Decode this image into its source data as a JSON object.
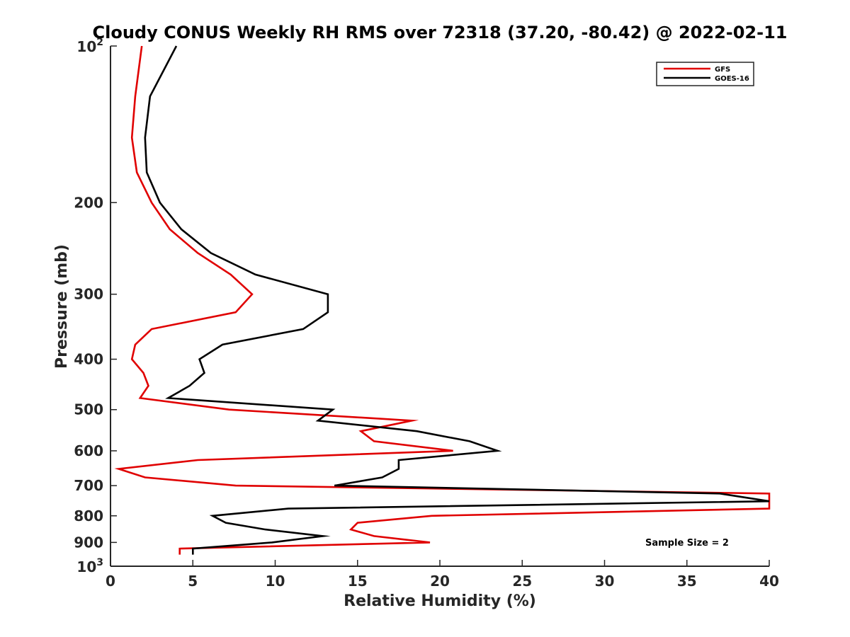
{
  "chart_data": {
    "type": "line",
    "title": "Cloudy CONUS Weekly RH RMS over 72318 (37.20, -80.42) @ 2022-02-11",
    "xlabel": "Relative Humidity (%)",
    "ylabel": "Pressure (mb)",
    "xlim": [
      0,
      40
    ],
    "ylim": [
      100,
      1000
    ],
    "yscale": "log",
    "y_reversed": true,
    "grid": false,
    "legend_position": "top-right",
    "x_ticks": [
      "0",
      "5",
      "10",
      "15",
      "20",
      "25",
      "30",
      "35",
      "40"
    ],
    "y_ticks": [
      {
        "value": 100,
        "base": "10",
        "exp": "2"
      },
      {
        "value": 200,
        "label": "200"
      },
      {
        "value": 300,
        "label": "300"
      },
      {
        "value": 400,
        "label": "400"
      },
      {
        "value": 500,
        "label": "500"
      },
      {
        "value": 600,
        "label": "600"
      },
      {
        "value": 700,
        "label": "700"
      },
      {
        "value": 800,
        "label": "800"
      },
      {
        "value": 900,
        "label": "900"
      },
      {
        "value": 1000,
        "base": "10",
        "exp": "3"
      }
    ],
    "annotation": "Sample Size = 2",
    "series": [
      {
        "name": "GFS",
        "color": "#e00000",
        "pressure": [
          100,
          125,
          150,
          175,
          200,
          225,
          250,
          275,
          300,
          325,
          350,
          375,
          400,
          425,
          450,
          475,
          500,
          525,
          550,
          575,
          600,
          625,
          650,
          675,
          700,
          725,
          750,
          775,
          800,
          825,
          850,
          875,
          900,
          925,
          950
        ],
        "values": [
          1.9,
          1.5,
          1.3,
          1.6,
          2.5,
          3.6,
          5.3,
          7.3,
          8.6,
          7.6,
          2.5,
          1.5,
          1.3,
          2.0,
          2.3,
          1.8,
          7.2,
          18.3,
          15.2,
          16.0,
          20.8,
          5.3,
          0.5,
          2.1,
          7.6,
          40.0,
          40.0,
          40.0,
          19.5,
          15.0,
          14.6,
          16.0,
          19.4,
          4.2,
          4.2
        ]
      },
      {
        "name": "GOES-16",
        "color": "#000000",
        "pressure": [
          100,
          125,
          150,
          175,
          200,
          225,
          250,
          275,
          300,
          325,
          350,
          375,
          400,
          425,
          450,
          475,
          500,
          525,
          550,
          575,
          600,
          625,
          650,
          675,
          700,
          725,
          750,
          775,
          800,
          825,
          850,
          875,
          900,
          925,
          950
        ],
        "values": [
          4.0,
          2.4,
          2.1,
          2.2,
          3.0,
          4.3,
          6.1,
          8.8,
          13.2,
          13.2,
          11.7,
          6.8,
          5.4,
          5.7,
          4.8,
          3.5,
          13.5,
          12.6,
          18.6,
          21.8,
          23.5,
          17.5,
          17.5,
          16.5,
          13.6,
          37.0,
          40.0,
          10.8,
          6.2,
          7.0,
          9.4,
          12.9,
          9.8,
          5.0,
          5.0
        ]
      }
    ]
  }
}
